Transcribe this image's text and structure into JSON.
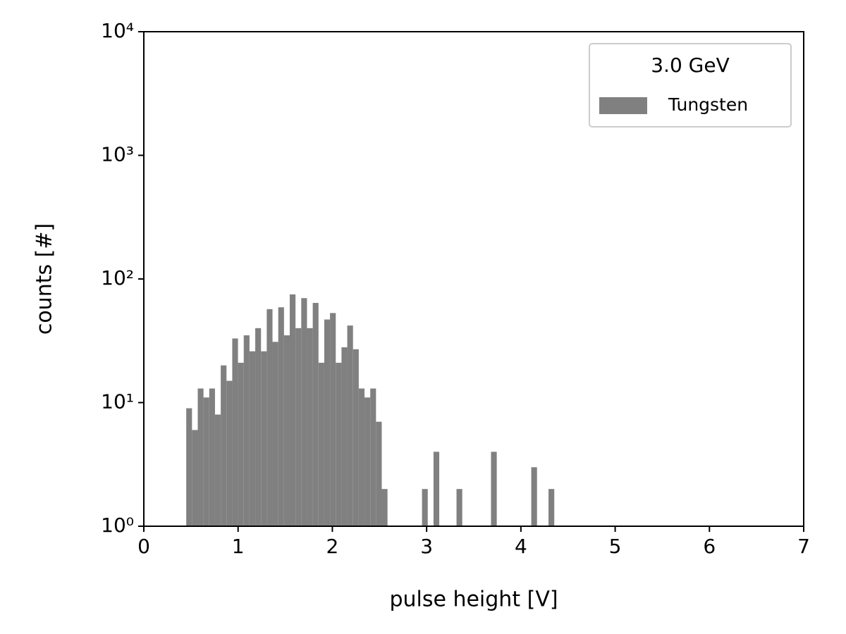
{
  "chart_data": {
    "type": "histogram",
    "x_label": "pulse height [V]",
    "y_label": "counts [#]",
    "legend_title": "3.0 GeV",
    "legend": "upper right",
    "series": [
      {
        "name": "Tungsten",
        "color": "#808080",
        "bins": [
          0.45,
          0.511,
          0.572,
          0.633,
          0.694,
          0.755,
          0.816,
          0.877,
          0.938,
          0.999,
          1.06,
          1.121,
          1.182,
          1.243,
          1.304,
          1.365,
          1.426,
          1.487,
          1.548,
          1.609,
          1.67,
          1.731,
          1.792,
          1.853,
          1.914,
          1.975,
          2.036,
          2.097,
          2.158,
          2.219,
          2.28,
          2.341,
          2.402,
          2.463,
          2.524,
          2.585,
          2.646,
          2.707,
          2.768,
          2.829,
          2.89,
          2.951,
          3.012,
          3.073,
          3.134,
          3.195,
          3.256,
          3.317,
          3.378,
          3.439,
          3.5,
          3.561,
          3.622,
          3.683,
          3.744,
          3.805,
          3.866,
          3.927,
          3.988,
          4.049,
          4.11,
          4.171,
          4.232,
          4.293,
          4.354
        ],
        "counts": [
          9,
          6,
          13,
          11,
          13,
          8,
          20,
          15,
          33,
          21,
          35,
          26,
          40,
          26,
          57,
          31,
          59,
          35,
          75,
          40,
          70,
          40,
          64,
          21,
          47,
          53,
          21,
          28,
          42,
          27,
          13,
          11,
          13,
          7,
          2,
          0,
          0,
          0,
          0,
          0,
          0,
          2,
          0,
          4,
          0,
          0,
          0,
          2,
          0,
          0,
          0,
          0,
          0,
          4,
          0,
          0,
          0,
          0,
          0,
          0,
          3,
          0,
          0,
          2
        ]
      }
    ],
    "xlim": [
      0,
      7
    ],
    "xticks": [
      0,
      1,
      2,
      3,
      4,
      5,
      6,
      7
    ],
    "ylim": [
      1,
      10000
    ],
    "ylog": true,
    "yticks": [
      {
        "value": 1,
        "label": "10⁰"
      },
      {
        "value": 10,
        "label": "10¹"
      },
      {
        "value": 100,
        "label": "10²"
      },
      {
        "value": 1000,
        "label": "10³"
      },
      {
        "value": 10000,
        "label": "10⁴"
      }
    ]
  }
}
